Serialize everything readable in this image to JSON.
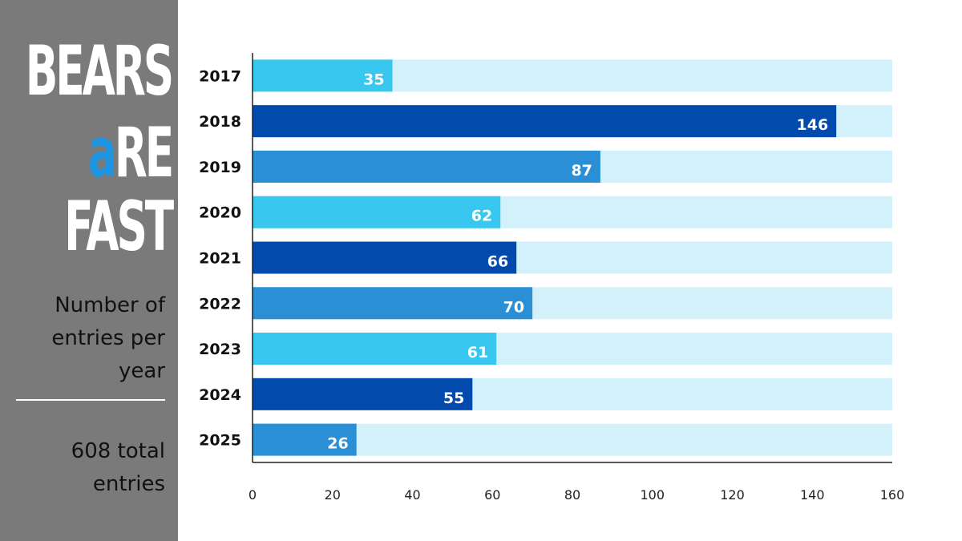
{
  "sidebar": {
    "logo": {
      "line1": "BEARS",
      "line2_accent": "a",
      "line2_rest": "RE",
      "line3": "FAST"
    },
    "subtitle_lines": [
      "Number of",
      "entries per",
      "year"
    ],
    "total_lines": [
      "608 total",
      "entries"
    ]
  },
  "colors": {
    "sidebar_bg": "#7a7a7a",
    "logo_accent": "#1c94e0",
    "track": "#d2f1fa",
    "bar_palette": [
      "#38c7ee",
      "#034aad",
      "#2b8fd6"
    ]
  },
  "chart_data": {
    "type": "bar",
    "orientation": "horizontal",
    "categories": [
      "2017",
      "2018",
      "2019",
      "2020",
      "2021",
      "2022",
      "2023",
      "2024",
      "2025"
    ],
    "values": [
      35,
      146,
      87,
      62,
      66,
      70,
      61,
      55,
      26
    ],
    "xlim": [
      0,
      160
    ],
    "xticks": [
      0,
      20,
      40,
      60,
      80,
      100,
      120,
      140,
      160
    ],
    "data_labels": true,
    "grid": false
  }
}
